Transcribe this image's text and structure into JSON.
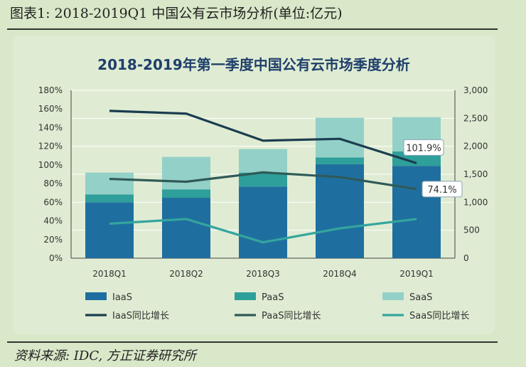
{
  "figure_title": "图表1:   2018-2019Q1 中国公有云市场分析(单位:亿元)",
  "source": "资料来源: IDC, 方正证券研究所",
  "colors": {
    "iaas": "#1e6f9f",
    "paas": "#2e9f9a",
    "saas": "#93d0c8",
    "iaas_growth": "#1b3d4f",
    "paas_growth": "#2f5a57",
    "saas_growth": "#34a59e"
  },
  "chart_data": {
    "type": "bar",
    "title": "2018-2019年第一季度中国公有云市场季度分析",
    "categories": [
      "2018Q1",
      "2018Q2",
      "2018Q3",
      "2018Q4",
      "2019Q1"
    ],
    "stacked": true,
    "y_right_ticks": [
      "3,000",
      "2,500",
      "2,000",
      "1,500",
      "1,000",
      "500",
      "0"
    ],
    "y_right_lim": [
      0,
      3000
    ],
    "y_left_ticks": [
      "180%",
      "160%",
      "140%",
      "120%",
      "100%",
      "80%",
      "60%",
      "40%",
      "20%",
      "0%"
    ],
    "y_left_lim": [
      0,
      180
    ],
    "series": [
      {
        "name": "IaaS",
        "kind": "bar",
        "axis": "right",
        "values": [
          1000,
          1080,
          1280,
          1680,
          1650
        ]
      },
      {
        "name": "PaaS",
        "kind": "bar",
        "axis": "right",
        "values": [
          140,
          150,
          250,
          120,
          260
        ]
      },
      {
        "name": "SaaS",
        "kind": "bar",
        "axis": "right",
        "values": [
          390,
          580,
          420,
          710,
          610
        ]
      },
      {
        "name": "IaaS同比增长",
        "kind": "line",
        "axis": "left",
        "values": [
          158,
          155,
          126,
          128,
          101.9
        ]
      },
      {
        "name": "PaaS同比增长",
        "kind": "line",
        "axis": "left",
        "values": [
          85,
          82,
          92,
          87,
          74.1
        ]
      },
      {
        "name": "SaaS同比增长",
        "kind": "line",
        "axis": "left",
        "values": [
          37,
          42,
          17,
          32,
          42
        ]
      }
    ],
    "annotations": [
      "101.9%",
      "74.1%"
    ],
    "grid": true,
    "legend_position": "bottom"
  }
}
